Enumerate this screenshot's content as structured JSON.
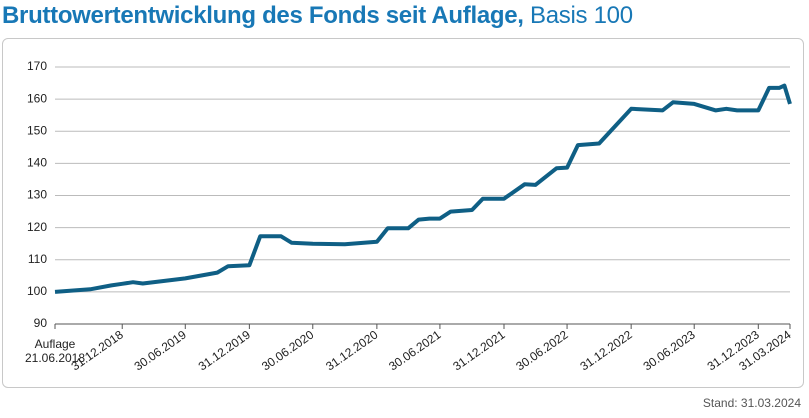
{
  "chart_data": {
    "type": "line",
    "title": "Bruttowertentwicklung des Fonds seit Auflage,",
    "subtitle": "Basis 100",
    "footnote": "Stand: 31.03.2024",
    "x": [
      "21.06.2018",
      "30.09.2018",
      "30.11.2018",
      "31.12.2018",
      "31.01.2019",
      "28.02.2019",
      "30.06.2019",
      "30.09.2019",
      "31.10.2019",
      "31.12.2019",
      "31.01.2020",
      "31.03.2020",
      "30.04.2020",
      "30.06.2020",
      "30.09.2020",
      "31.12.2020",
      "31.01.2021",
      "31.03.2021",
      "30.04.2021",
      "31.05.2021",
      "30.06.2021",
      "31.07.2021",
      "30.09.2021",
      "31.10.2021",
      "31.12.2021",
      "28.02.2022",
      "31.03.2022",
      "31.05.2022",
      "30.06.2022",
      "31.07.2022",
      "30.09.2022",
      "31.12.2022",
      "31.03.2023",
      "30.04.2023",
      "30.06.2023",
      "31.08.2023",
      "30.09.2023",
      "31.10.2023",
      "31.12.2023",
      "31.01.2024",
      "29.02.2024",
      "15.03.2024",
      "31.03.2024"
    ],
    "series": [
      {
        "name": "Fonds",
        "color": "#0f5f85",
        "values": [
          100,
          100.8,
          102,
          102.5,
          103,
          102.6,
          104.2,
          106,
          108,
          108.3,
          117.3,
          117.3,
          115.3,
          115,
          114.8,
          115.6,
          119.8,
          119.8,
          122.5,
          122.8,
          122.8,
          125,
          125.5,
          129,
          129,
          133.5,
          133.3,
          138.5,
          138.7,
          145.7,
          146.2,
          157,
          156.5,
          159,
          158.5,
          156.5,
          157,
          156.5,
          156.5,
          163.5,
          163.5,
          164.2,
          158.5
        ]
      }
    ],
    "xlim": [
      "21.06.2018",
      "31.03.2024"
    ],
    "xticks": [
      {
        "value": "21.06.2018",
        "label": "Auflage 21.06.2018"
      },
      "31.12.2018",
      "30.06.2019",
      "31.12.2019",
      "30.06.2020",
      "31.12.2020",
      "30.06.2021",
      "31.12.2021",
      "30.06.2022",
      "31.12.2022",
      "30.06.2023",
      "31.12.2023",
      "31.03.2024"
    ],
    "ylim": [
      90,
      170
    ],
    "yticks": [
      90,
      100,
      110,
      120,
      130,
      140,
      150,
      160,
      170
    ],
    "grid": true
  }
}
